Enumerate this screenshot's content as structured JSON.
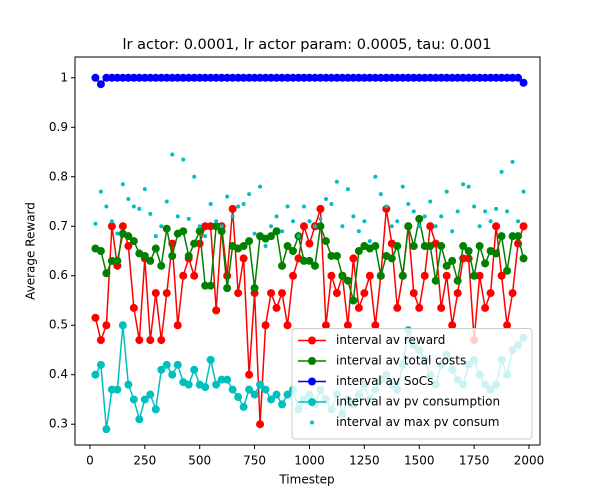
{
  "chart_data": {
    "type": "line",
    "title": "lr actor: 0.0001, lr actor param: 0.0005, tau: 0.001",
    "xlabel": "Timestep",
    "ylabel": "Average Reward",
    "x": [
      25,
      50,
      75,
      100,
      125,
      150,
      175,
      200,
      225,
      250,
      275,
      300,
      325,
      350,
      375,
      400,
      425,
      450,
      475,
      500,
      525,
      550,
      575,
      600,
      625,
      650,
      675,
      700,
      725,
      750,
      775,
      800,
      825,
      850,
      875,
      900,
      925,
      950,
      975,
      1000,
      1025,
      1050,
      1075,
      1100,
      1125,
      1150,
      1175,
      1200,
      1225,
      1250,
      1275,
      1300,
      1325,
      1350,
      1375,
      1400,
      1425,
      1450,
      1475,
      1500,
      1525,
      1550,
      1575,
      1600,
      1625,
      1650,
      1675,
      1700,
      1725,
      1750,
      1775,
      1800,
      1825,
      1850,
      1875,
      1900,
      1925,
      1950,
      1975
    ],
    "xlim": [
      -68,
      2050
    ],
    "xticks": [
      0,
      250,
      500,
      750,
      1000,
      1250,
      1500,
      1750,
      2000
    ],
    "ylim": [
      0.258,
      1.042
    ],
    "yticks": [
      0.3,
      0.4,
      0.5,
      0.6,
      0.7,
      0.8,
      0.9,
      1.0
    ],
    "legend": "lower right",
    "series": [
      {
        "name": "interval av reward",
        "color": "#ff0000",
        "linestyle": "solid",
        "values": [
          0.515,
          0.47,
          0.5,
          0.7,
          0.62,
          0.7,
          0.66,
          0.535,
          0.47,
          0.635,
          0.47,
          0.565,
          0.47,
          0.565,
          0.665,
          0.5,
          0.6,
          0.635,
          0.6,
          0.665,
          0.7,
          0.7,
          0.53,
          0.7,
          0.6,
          0.735,
          0.565,
          0.635,
          0.4,
          0.565,
          0.3,
          0.5,
          0.565,
          0.535,
          0.565,
          0.5,
          0.6,
          0.635,
          0.7,
          0.665,
          0.7,
          0.735,
          0.5,
          0.6,
          0.565,
          0.6,
          0.5,
          0.635,
          0.535,
          0.565,
          0.6,
          0.5,
          0.6,
          0.735,
          0.665,
          0.535,
          0.6,
          0.7,
          0.565,
          0.535,
          0.6,
          0.7,
          0.665,
          0.535,
          0.6,
          0.5,
          0.565,
          0.635,
          0.635,
          0.47,
          0.6,
          0.535,
          0.565,
          0.7,
          0.6,
          0.5,
          0.565,
          0.665,
          0.7
        ]
      },
      {
        "name": "interval av total costs",
        "color": "#008000",
        "linestyle": "solid",
        "values": [
          0.655,
          0.65,
          0.605,
          0.63,
          0.63,
          0.685,
          0.68,
          0.67,
          0.645,
          0.64,
          0.63,
          0.655,
          0.62,
          0.695,
          0.64,
          0.685,
          0.69,
          0.64,
          0.665,
          0.69,
          0.58,
          0.58,
          0.7,
          0.69,
          0.575,
          0.66,
          0.655,
          0.66,
          0.67,
          0.575,
          0.68,
          0.675,
          0.68,
          0.69,
          0.62,
          0.66,
          0.65,
          0.68,
          0.63,
          0.63,
          0.62,
          0.7,
          0.67,
          0.64,
          0.64,
          0.6,
          0.59,
          0.55,
          0.65,
          0.66,
          0.655,
          0.66,
          0.6,
          0.64,
          0.635,
          0.66,
          0.6,
          0.7,
          0.66,
          0.715,
          0.66,
          0.66,
          0.59,
          0.66,
          0.62,
          0.63,
          0.59,
          0.66,
          0.65,
          0.6,
          0.66,
          0.625,
          0.65,
          0.645,
          0.68,
          0.61,
          0.68,
          0.68,
          0.635
        ]
      },
      {
        "name": "interval av SoCs",
        "color": "#0000ff",
        "linestyle": "solid",
        "values": [
          1.0,
          0.987,
          1.0,
          1.0,
          1.0,
          1.0,
          1.0,
          1.0,
          1.0,
          1.0,
          1.0,
          1.0,
          1.0,
          1.0,
          1.0,
          1.0,
          1.0,
          1.0,
          1.0,
          1.0,
          1.0,
          1.0,
          1.0,
          1.0,
          1.0,
          1.0,
          1.0,
          1.0,
          1.0,
          1.0,
          1.0,
          1.0,
          1.0,
          1.0,
          1.0,
          1.0,
          1.0,
          1.0,
          1.0,
          1.0,
          1.0,
          1.0,
          1.0,
          1.0,
          1.0,
          1.0,
          1.0,
          1.0,
          1.0,
          1.0,
          1.0,
          1.0,
          1.0,
          1.0,
          1.0,
          1.0,
          1.0,
          1.0,
          1.0,
          1.0,
          1.0,
          1.0,
          1.0,
          1.0,
          1.0,
          1.0,
          1.0,
          1.0,
          1.0,
          1.0,
          1.0,
          1.0,
          1.0,
          1.0,
          1.0,
          1.0,
          1.0,
          1.0,
          0.99
        ]
      },
      {
        "name": "interval av pv consumption",
        "color": "#00bfbf",
        "linestyle": "solid",
        "values": [
          0.4,
          0.42,
          0.29,
          0.37,
          0.37,
          0.5,
          0.38,
          0.35,
          0.31,
          0.35,
          0.36,
          0.33,
          0.41,
          0.42,
          0.4,
          0.42,
          0.385,
          0.38,
          0.41,
          0.38,
          0.375,
          0.43,
          0.38,
          0.39,
          0.39,
          0.37,
          0.355,
          0.335,
          0.37,
          0.36,
          0.38,
          0.37,
          0.35,
          0.36,
          0.34,
          0.36,
          0.37,
          0.33,
          0.35,
          0.36,
          0.34,
          0.37,
          0.35,
          0.33,
          0.36,
          0.32,
          0.35,
          0.34,
          0.36,
          0.38,
          0.35,
          0.37,
          0.39,
          0.4,
          0.38,
          0.37,
          0.42,
          0.49,
          0.46,
          0.45,
          0.43,
          0.4,
          0.38,
          0.42,
          0.44,
          0.41,
          0.39,
          0.38,
          0.42,
          0.43,
          0.4,
          0.38,
          0.37,
          0.38,
          0.43,
          0.4,
          0.45,
          0.46,
          0.475
        ]
      },
      {
        "name": "interval av max pv consum",
        "color": "#00bfbf",
        "linestyle": "none",
        "values": [
          0.705,
          0.77,
          0.74,
          0.71,
          0.685,
          0.785,
          0.755,
          0.74,
          0.735,
          0.775,
          0.725,
          0.68,
          0.7,
          0.75,
          0.845,
          0.72,
          0.835,
          0.715,
          0.8,
          0.7,
          0.68,
          0.745,
          0.71,
          0.7,
          0.76,
          0.72,
          0.74,
          0.745,
          0.765,
          0.685,
          0.78,
          0.66,
          0.7,
          0.72,
          0.69,
          0.74,
          0.71,
          0.68,
          0.74,
          0.71,
          0.7,
          0.715,
          0.755,
          0.745,
          0.79,
          0.7,
          0.775,
          0.72,
          0.69,
          0.71,
          0.67,
          0.8,
          0.765,
          0.74,
          0.7,
          0.71,
          0.78,
          0.745,
          0.73,
          0.7,
          0.72,
          0.75,
          0.7,
          0.72,
          0.77,
          0.69,
          0.73,
          0.785,
          0.78,
          0.74,
          0.7,
          0.73,
          0.71,
          0.735,
          0.81,
          0.73,
          0.83,
          0.71,
          0.77
        ]
      }
    ]
  }
}
